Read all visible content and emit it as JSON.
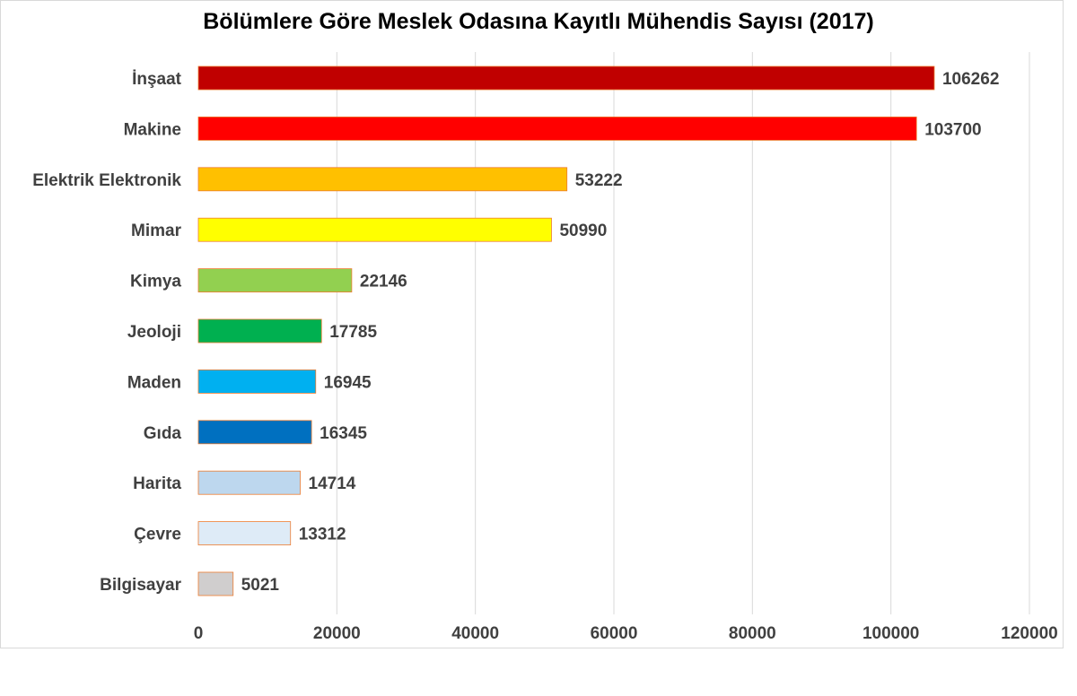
{
  "chart_data": {
    "type": "bar",
    "orientation": "horizontal",
    "title": "Bölümlere Göre Meslek Odasına Kayıtlı Mühendis Sayısı (2017)",
    "xlabel": "",
    "ylabel": "",
    "categories": [
      "İnşaat",
      "Makine",
      "Elektrik Elektronik",
      "Mimar",
      "Kimya",
      "Jeoloji",
      "Maden",
      "Gıda",
      "Harita",
      "Çevre",
      "Bilgisayar"
    ],
    "values": [
      106262,
      103700,
      53222,
      50990,
      22146,
      17785,
      16945,
      16345,
      14714,
      13312,
      5021
    ],
    "colors": [
      "#c00000",
      "#ff0000",
      "#ffc000",
      "#ffff00",
      "#92d050",
      "#00b050",
      "#00b0f0",
      "#0070c0",
      "#bdd7ee",
      "#deebf7",
      "#d0cece"
    ],
    "xlim": [
      0,
      120000
    ],
    "xticks": [
      0,
      20000,
      40000,
      60000,
      80000,
      100000,
      120000
    ],
    "grid": "vertical",
    "legend": "none"
  }
}
